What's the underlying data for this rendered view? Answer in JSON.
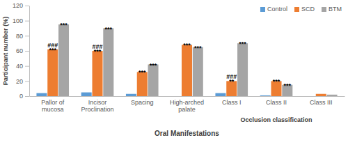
{
  "chart_data": {
    "type": "bar",
    "x_label": "Oral Manifestations",
    "y_label": "Participant number (%)",
    "categories": [
      "Pallor of mucosa",
      "Incisor Proclination",
      "Spacing",
      "High-arched palate",
      "Class I",
      "Class II",
      "Class III"
    ],
    "x_groups": [
      {
        "label": "Occlusion classification",
        "start": "Class I",
        "end": "Class III"
      }
    ],
    "series": [
      {
        "name": "Control",
        "color": "#5b9bd5",
        "values": [
          4,
          5,
          3,
          0,
          4,
          1,
          0
        ]
      },
      {
        "name": "SCD",
        "color": "#ed7d31",
        "values": [
          62,
          60,
          32,
          68,
          20,
          20,
          3
        ],
        "annotations": [
          [
            "###",
            "***"
          ],
          [
            "###",
            "***"
          ],
          [
            "***"
          ],
          [
            "***"
          ],
          [
            "###",
            "**"
          ],
          [
            "***"
          ],
          null
        ]
      },
      {
        "name": "BTM",
        "color": "#a5a5a5",
        "values": [
          95,
          90,
          42,
          65,
          70,
          15,
          2
        ],
        "annotations": [
          [
            "***"
          ],
          [
            "***"
          ],
          [
            "***"
          ],
          [
            "***"
          ],
          [
            "***"
          ],
          [
            "***"
          ],
          null
        ]
      }
    ],
    "ylim": [
      0,
      120
    ],
    "yticks": [
      0,
      20,
      40,
      60,
      80,
      100,
      120
    ],
    "grid": false,
    "legend": "upper right"
  }
}
